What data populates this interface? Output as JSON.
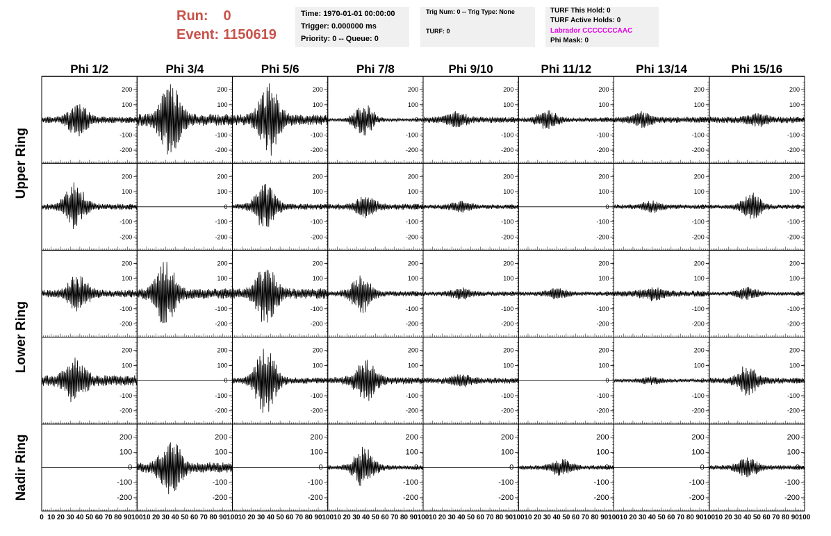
{
  "header": {
    "run_label": "Run:",
    "run_value": "0",
    "event_label": "Event:",
    "event_value": "1150619",
    "time_text": "Time: 1970-01-01 00:00:00",
    "trigger_text": "Trigger: 0.000000 ms",
    "priority_text": "Priority: 0 -- Queue: 0",
    "trig_num_text": "Trig Num: 0 -- Trig Type: None",
    "turf_text": "TURF: 0",
    "turf_hold_text": "TURF This Hold: 0",
    "turf_active_text": "TURF Active Holds: 0",
    "labrador_text": "Labrador CCCCCCCAAC",
    "phi_mask_text": "Phi Mask: 0"
  },
  "colors": {
    "run_text": "#c8524a",
    "labrador_text": "#e600e6",
    "info_box_bg": "#f0f0f0",
    "trace": "#000000"
  },
  "columns": [
    "Phi 1/2",
    "Phi 3/4",
    "Phi 5/6",
    "Phi 7/8",
    "Phi 9/10",
    "Phi 11/12",
    "Phi 13/14",
    "Phi 15/16"
  ],
  "row_labels": [
    "Upper Ring",
    "Lower Ring",
    "Nadir Ring"
  ],
  "chart_data": {
    "type": "line",
    "x_range": [
      0,
      100
    ],
    "y_range": [
      -260,
      260
    ],
    "x_ticks": [
      "0",
      "10",
      "20",
      "30",
      "40",
      "50",
      "60",
      "70",
      "80",
      "90",
      "100"
    ],
    "y_ticks": [
      "200",
      "100",
      "0",
      "-100",
      "-200"
    ],
    "grid": false,
    "rows": 5,
    "cols": 8,
    "note_amp": "peak amplitude per panel (data units); 0 = flat trace",
    "panels": [
      [
        {
          "amp": 100,
          "peak": 38,
          "noise": 22
        },
        {
          "amp": 235,
          "peak": 35,
          "noise": 40
        },
        {
          "amp": 240,
          "peak": 38,
          "noise": 35
        },
        {
          "amp": 105,
          "peak": 38,
          "noise": 10
        },
        {
          "amp": 45,
          "peak": 35,
          "noise": 20
        },
        {
          "amp": 60,
          "peak": 30,
          "noise": 15
        },
        {
          "amp": 40,
          "peak": 30,
          "noise": 20
        },
        {
          "amp": 30,
          "peak": 50,
          "noise": 22
        }
      ],
      [
        {
          "amp": 150,
          "peak": 35,
          "noise": 20
        },
        {
          "amp": 0,
          "peak": 0,
          "noise": 0
        },
        {
          "amp": 160,
          "peak": 35,
          "noise": 20
        },
        {
          "amp": 60,
          "peak": 40,
          "noise": 20
        },
        {
          "amp": 30,
          "peak": 40,
          "noise": 15
        },
        {
          "amp": 0,
          "peak": 0,
          "noise": 0
        },
        {
          "amp": 30,
          "peak": 40,
          "noise": 15
        },
        {
          "amp": 80,
          "peak": 45,
          "noise": 15
        }
      ],
      [
        {
          "amp": 110,
          "peak": 38,
          "noise": 25
        },
        {
          "amp": 200,
          "peak": 30,
          "noise": 35
        },
        {
          "amp": 190,
          "peak": 35,
          "noise": 35
        },
        {
          "amp": 120,
          "peak": 35,
          "noise": 18
        },
        {
          "amp": 30,
          "peak": 40,
          "noise": 15
        },
        {
          "amp": 30,
          "peak": 40,
          "noise": 14
        },
        {
          "amp": 40,
          "peak": 40,
          "noise": 20
        },
        {
          "amp": 40,
          "peak": 40,
          "noise": 12
        }
      ],
      [
        {
          "amp": 140,
          "peak": 35,
          "noise": 35
        },
        {
          "amp": 0,
          "peak": 0,
          "noise": 0
        },
        {
          "amp": 230,
          "peak": 35,
          "noise": 20
        },
        {
          "amp": 130,
          "peak": 40,
          "noise": 25
        },
        {
          "amp": 30,
          "peak": 40,
          "noise": 20
        },
        {
          "amp": 0,
          "peak": 0,
          "noise": 0
        },
        {
          "amp": 20,
          "peak": 40,
          "noise": 12
        },
        {
          "amp": 90,
          "peak": 40,
          "noise": 20
        }
      ],
      [
        {
          "amp": 0,
          "peak": 0,
          "noise": 0
        },
        {
          "amp": 180,
          "peak": 35,
          "noise": 35
        },
        {
          "amp": 0,
          "peak": 0,
          "noise": 0
        },
        {
          "amp": 130,
          "peak": 38,
          "noise": 15
        },
        {
          "amp": 0,
          "peak": 0,
          "noise": 0
        },
        {
          "amp": 50,
          "peak": 45,
          "noise": 15
        },
        {
          "amp": 0,
          "peak": 0,
          "noise": 0
        },
        {
          "amp": 60,
          "peak": 40,
          "noise": 15
        }
      ]
    ]
  }
}
